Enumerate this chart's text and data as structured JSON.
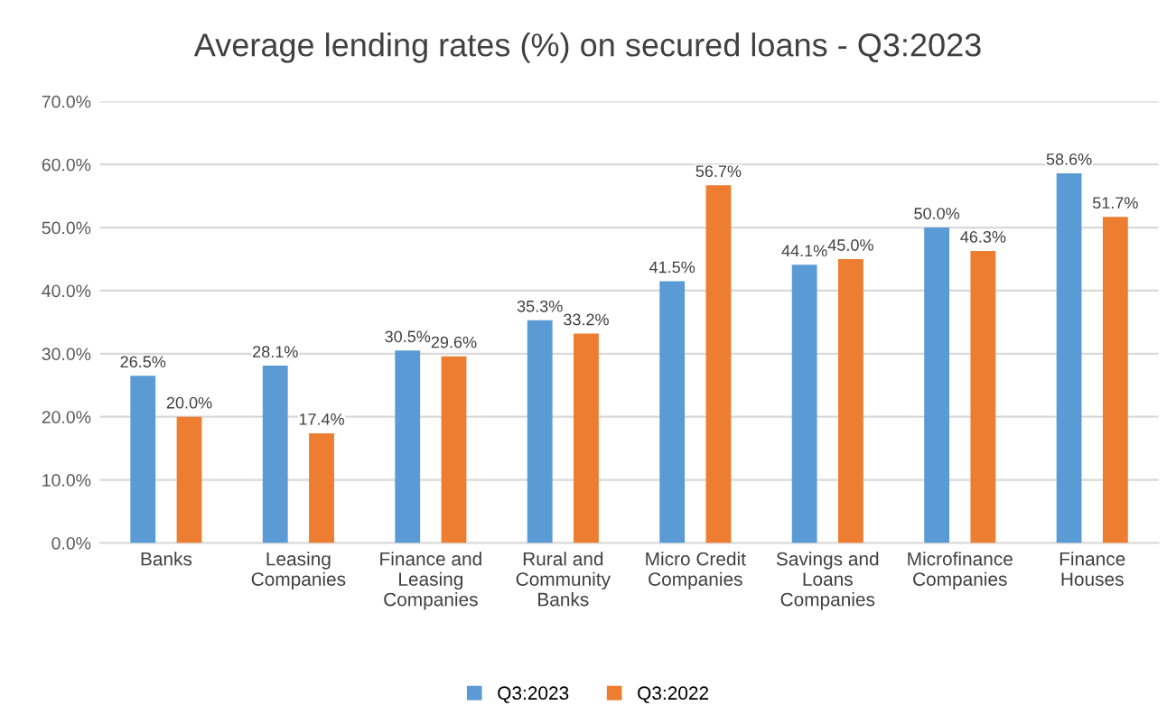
{
  "chart_data": {
    "type": "bar",
    "title": "Average lending rates (%) on secured loans - Q3:2023",
    "categories": [
      "Banks",
      "Leasing\nCompanies",
      "Finance and\nLeasing\nCompanies",
      "Rural and\nCommunity\nBanks",
      "Micro Credit\nCompanies",
      "Savings and\nLoans\nCompanies",
      "Microfinance\nCompanies",
      "Finance\nHouses"
    ],
    "series": [
      {
        "name": "Q3:2023",
        "color": "#5b9bd5",
        "values": [
          26.5,
          28.1,
          30.5,
          35.3,
          41.5,
          44.1,
          50.0,
          58.6
        ],
        "value_labels": [
          "26.5%",
          "28.1%",
          "30.5%",
          "35.3%",
          "41.5%",
          "44.1%",
          "50.0%",
          "58.6%"
        ]
      },
      {
        "name": "Q3:2022",
        "color": "#ed7d31",
        "values": [
          20.0,
          17.4,
          29.6,
          33.2,
          56.7,
          45.0,
          46.3,
          51.7
        ],
        "value_labels": [
          "20.0%",
          "17.4%",
          "29.6%",
          "33.2%",
          "56.7%",
          "45.0%",
          "46.3%",
          "51.7%"
        ]
      }
    ],
    "ylim": [
      0,
      70
    ],
    "yticks": [
      {
        "value": 0,
        "label": "0.0%"
      },
      {
        "value": 10,
        "label": "10.0%"
      },
      {
        "value": 20,
        "label": "20.0%"
      },
      {
        "value": 30,
        "label": "30.0%"
      },
      {
        "value": 40,
        "label": "40.0%"
      },
      {
        "value": 50,
        "label": "50.0%"
      },
      {
        "value": 60,
        "label": "60.0%"
      },
      {
        "value": 70,
        "label": "70.0%"
      }
    ],
    "grid": "y",
    "legend": "bottom"
  }
}
